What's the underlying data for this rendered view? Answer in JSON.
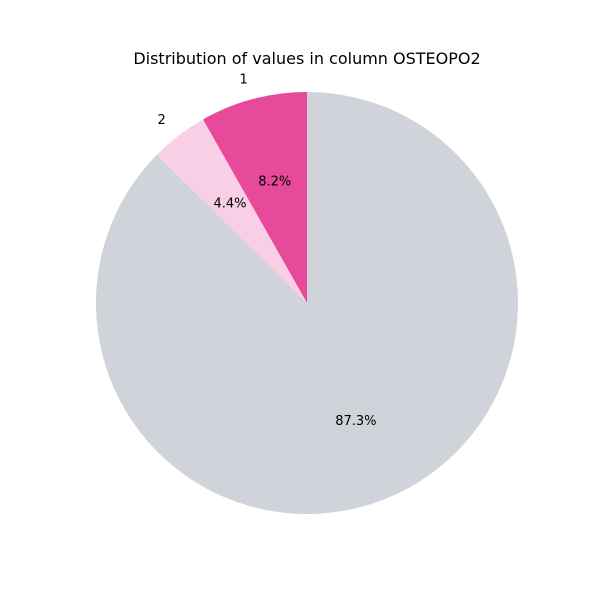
{
  "chart_data": {
    "type": "pie",
    "title": "Distribution of values in column OSTEOPO2",
    "slices": [
      {
        "label": "1",
        "value": 8.2,
        "pct_label": "8.2%",
        "color": "#e84a9b"
      },
      {
        "label": "2",
        "value": 4.4,
        "pct_label": "4.4%",
        "color": "#f9cfe6"
      },
      {
        "label": "",
        "value": 87.3,
        "pct_label": "87.3%",
        "color": "#d1d3da"
      }
    ],
    "start_angle_deg": 90,
    "direction": "counterclockwise",
    "legend": "none"
  }
}
